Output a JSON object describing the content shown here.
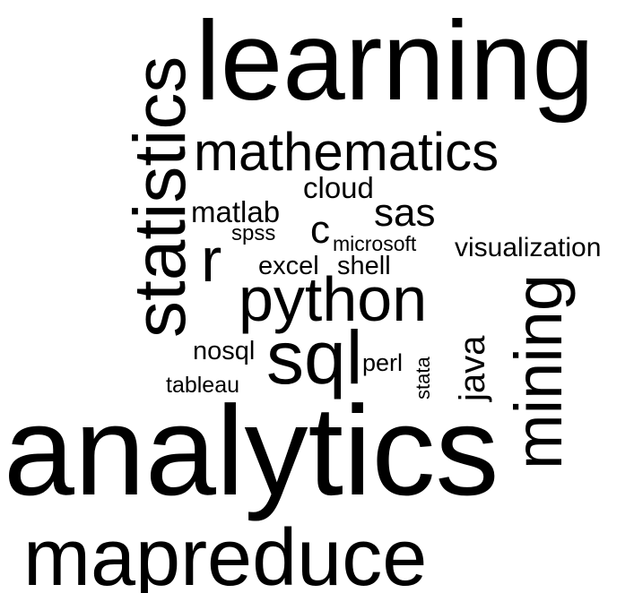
{
  "cloud": {
    "background": "#ffffff",
    "text_color": "#000000",
    "words": {
      "learning": "learning",
      "statistics": "statistics",
      "mathematics": "mathematics",
      "cloud": "cloud",
      "matlab": "matlab",
      "sas": "sas",
      "spss": "spss",
      "c": "c",
      "microsoft": "microsoft",
      "r": "r",
      "visualization": "visualization",
      "excel": "excel",
      "shell": "shell",
      "python": "python",
      "mining": "mining",
      "nosql": "nosql",
      "sql": "sql",
      "perl": "perl",
      "java": "java",
      "stata": "stata",
      "tableau": "tableau",
      "analytics": "analytics",
      "mapreduce": "mapreduce"
    }
  }
}
